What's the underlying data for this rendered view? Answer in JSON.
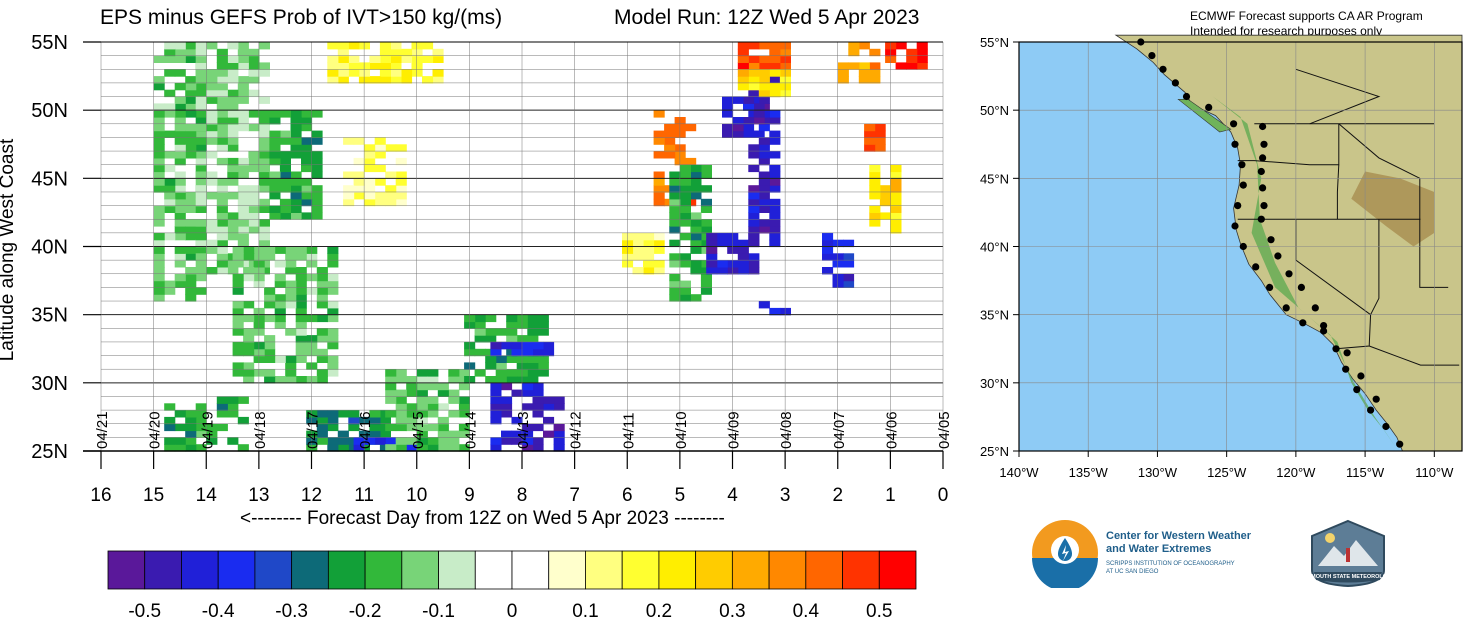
{
  "header": {
    "left_title": "EPS minus GEFS Prob of IVT>150 kg/(ms)",
    "right_title": "Model Run: 12Z Wed 5 Apr 2023",
    "note_line1": "ECMWF Forecast supports CA AR Program",
    "note_line2": "Intended for research purposes only"
  },
  "chart_data": [
    {
      "type": "heatmap",
      "title": "EPS minus GEFS Prob of IVT>150 kg/(ms)",
      "subtitle": "Model Run: 12Z Wed 5 Apr 2023",
      "xlabel": "<-------- Forecast Day from 12Z on Wed 5 Apr 2023 --------",
      "ylabel": "Latitude along West Coast",
      "xlim": [
        16,
        0
      ],
      "ylim": [
        25,
        55
      ],
      "x_ticks": [
        16,
        15,
        14,
        13,
        12,
        11,
        10,
        9,
        8,
        7,
        6,
        5,
        4,
        3,
        2,
        1,
        0
      ],
      "y_ticks": [
        "25N",
        "30N",
        "35N",
        "40N",
        "45N",
        "50N",
        "55N"
      ],
      "date_labels": [
        {
          "day": 16,
          "label": "04/21"
        },
        {
          "day": 15,
          "label": "04/20"
        },
        {
          "day": 14,
          "label": "04/19"
        },
        {
          "day": 13,
          "label": "04/18"
        },
        {
          "day": 12,
          "label": "04/17"
        },
        {
          "day": 11,
          "label": "04/16"
        },
        {
          "day": 10,
          "label": "04/15"
        },
        {
          "day": 9,
          "label": "04/14"
        },
        {
          "day": 8,
          "label": "04/13"
        },
        {
          "day": 7,
          "label": "04/12"
        },
        {
          "day": 6,
          "label": "04/11"
        },
        {
          "day": 5,
          "label": "04/10"
        },
        {
          "day": 4,
          "label": "04/09"
        },
        {
          "day": 3,
          "label": "04/08"
        },
        {
          "day": 2,
          "label": "04/07"
        },
        {
          "day": 1,
          "label": "04/06"
        },
        {
          "day": 0,
          "label": "04/05"
        }
      ],
      "regions": [
        {
          "x0": 15,
          "x1": 14,
          "y0": 36,
          "y1": 55,
          "value": -0.15
        },
        {
          "x0": 14.2,
          "x1": 12.8,
          "y0": 38,
          "y1": 55,
          "value": -0.12
        },
        {
          "x0": 13.5,
          "x1": 11.5,
          "y0": 30,
          "y1": 40,
          "value": -0.15
        },
        {
          "x0": 12.8,
          "x1": 11.8,
          "y0": 42,
          "y1": 50,
          "value": -0.2
        },
        {
          "x0": 11.7,
          "x1": 9.5,
          "y0": 52,
          "y1": 55,
          "value": 0.18
        },
        {
          "x0": 11.3,
          "x1": 10.2,
          "y0": 43,
          "y1": 48,
          "value": 0.12
        },
        {
          "x0": 14.8,
          "x1": 13.2,
          "y0": 25,
          "y1": 29,
          "value": -0.2
        },
        {
          "x0": 12,
          "x1": 10.5,
          "y0": 25,
          "y1": 28,
          "value": -0.25
        },
        {
          "x0": 11.2,
          "x1": 9.8,
          "y0": 25,
          "y1": 26,
          "value": -0.4
        },
        {
          "x0": 10.5,
          "x1": 9,
          "y0": 25,
          "y1": 31,
          "value": -0.15
        },
        {
          "x0": 9,
          "x1": 7.5,
          "y0": 30,
          "y1": 35,
          "value": -0.2
        },
        {
          "x0": 8.6,
          "x1": 7.4,
          "y0": 32,
          "y1": 33,
          "value": -0.4
        },
        {
          "x0": 8.6,
          "x1": 7.2,
          "y0": 25,
          "y1": 30,
          "value": -0.45
        },
        {
          "x0": 6,
          "x1": 5.3,
          "y0": 38,
          "y1": 41,
          "value": 0.15
        },
        {
          "x0": 5.4,
          "x1": 4.7,
          "y0": 43,
          "y1": 50,
          "value": 0.4
        },
        {
          "x0": 5.1,
          "x1": 4.4,
          "y0": 36,
          "y1": 46,
          "value": -0.2
        },
        {
          "x0": 4.5,
          "x1": 3.5,
          "y0": 38,
          "y1": 41,
          "value": -0.45
        },
        {
          "x0": 3.6,
          "x1": 3.1,
          "y0": 40,
          "y1": 53,
          "value": -0.45
        },
        {
          "x0": 4.1,
          "x1": 3.4,
          "y0": 48,
          "y1": 51,
          "value": -0.45
        },
        {
          "x0": 3.8,
          "x1": 2.9,
          "y0": 53,
          "y1": 55,
          "value": 0.45
        },
        {
          "x0": 3.9,
          "x1": 2.9,
          "y0": 51,
          "y1": 53,
          "value": 0.25
        },
        {
          "x0": 2.2,
          "x1": 1.7,
          "y0": 37,
          "y1": 41,
          "value": -0.4
        },
        {
          "x0": 1.4,
          "x1": 0.8,
          "y0": 41,
          "y1": 46,
          "value": 0.25
        },
        {
          "x0": 1.5,
          "x1": 1.1,
          "y0": 47,
          "y1": 49,
          "value": 0.45
        },
        {
          "x0": 1.0,
          "x1": 0.3,
          "y0": 53,
          "y1": 55,
          "value": 0.5
        },
        {
          "x0": 2.0,
          "x1": 1.2,
          "y0": 52,
          "y1": 55,
          "value": 0.35
        },
        {
          "x0": 3.4,
          "x1": 2.9,
          "y0": 35,
          "y1": 36,
          "value": -0.4
        }
      ]
    },
    {
      "type": "colorbar",
      "tick_labels": [
        "-0.5",
        "-0.4",
        "-0.3",
        "-0.2",
        "-0.1",
        "0",
        "0.1",
        "0.2",
        "0.3",
        "0.4",
        "0.5"
      ],
      "bins": [
        {
          "value": -0.525,
          "color": "#5a189a"
        },
        {
          "value": -0.475,
          "color": "#3a1bb0"
        },
        {
          "value": -0.425,
          "color": "#2020d8"
        },
        {
          "value": -0.375,
          "color": "#1a2cf0"
        },
        {
          "value": -0.325,
          "color": "#1f48c8"
        },
        {
          "value": -0.275,
          "color": "#0d6a78"
        },
        {
          "value": -0.225,
          "color": "#12a038"
        },
        {
          "value": -0.175,
          "color": "#32b83a"
        },
        {
          "value": -0.125,
          "color": "#78d478"
        },
        {
          "value": -0.075,
          "color": "#c8ecc8"
        },
        {
          "value": -0.025,
          "color": "#ffffff"
        },
        {
          "value": 0.025,
          "color": "#ffffff"
        },
        {
          "value": 0.075,
          "color": "#ffffcc"
        },
        {
          "value": 0.125,
          "color": "#ffff80"
        },
        {
          "value": 0.175,
          "color": "#ffff30"
        },
        {
          "value": 0.225,
          "color": "#ffee00"
        },
        {
          "value": 0.275,
          "color": "#ffcc00"
        },
        {
          "value": 0.325,
          "color": "#ffaa00"
        },
        {
          "value": 0.375,
          "color": "#ff8800"
        },
        {
          "value": 0.425,
          "color": "#ff6600"
        },
        {
          "value": 0.475,
          "color": "#ff3300"
        },
        {
          "value": 0.525,
          "color": "#ff0000"
        }
      ]
    },
    {
      "type": "map",
      "lon_ticks": [
        "140°W",
        "135°W",
        "130°W",
        "125°W",
        "120°W",
        "115°W",
        "110°W"
      ],
      "lat_ticks": [
        "25°N",
        "30°N",
        "35°N",
        "40°N",
        "45°N",
        "50°N",
        "55°N"
      ],
      "lon_range": [
        -140,
        -108
      ],
      "lat_range": [
        25,
        55
      ],
      "ocean_color": "#8ecbf5",
      "coast_points": [
        [
          -131.2,
          55
        ],
        [
          -130.4,
          54
        ],
        [
          -129.6,
          53
        ],
        [
          -128.7,
          52
        ],
        [
          -127.9,
          51
        ],
        [
          -126.3,
          50.2
        ],
        [
          -124.5,
          49
        ],
        [
          -124.4,
          47.5
        ],
        [
          -123.9,
          46
        ],
        [
          -123.8,
          44.5
        ],
        [
          -124.2,
          43
        ],
        [
          -124.4,
          41.5
        ],
        [
          -123.8,
          40
        ],
        [
          -122.9,
          38.5
        ],
        [
          -121.9,
          37
        ],
        [
          -120.7,
          35.5
        ],
        [
          -119.5,
          34.4
        ],
        [
          -118,
          33.8
        ],
        [
          -117.1,
          32.5
        ],
        [
          -116.4,
          31
        ],
        [
          -115.6,
          29.5
        ],
        [
          -114.6,
          28
        ],
        [
          -113.5,
          26.8
        ],
        [
          -112.5,
          25.5
        ],
        [
          -122.4,
          48.8
        ],
        [
          -122.3,
          47.5
        ],
        [
          -122.4,
          46.5
        ],
        [
          -122.5,
          45.5
        ],
        [
          -122.4,
          44.3
        ],
        [
          -122.3,
          43
        ],
        [
          -122.5,
          42
        ],
        [
          -121.8,
          40.5
        ],
        [
          -121.3,
          39.3
        ],
        [
          -120.5,
          38
        ],
        [
          -119.6,
          37
        ],
        [
          -118.6,
          35.5
        ],
        [
          -118,
          34.2
        ],
        [
          -116.3,
          32.2
        ],
        [
          -115.3,
          30.5
        ],
        [
          -114.2,
          28.8
        ]
      ]
    }
  ],
  "logos": {
    "cw3e_line1": "Center for Western Weather",
    "cw3e_line2": "and Water Extremes",
    "cw3e_sub1": "SCRIPPS INSTITUTION OF OCEANOGRAPHY",
    "cw3e_sub2": "AT UC SAN DIEGO",
    "psu_text": "PLYMOUTH STATE METEOROLOGY"
  }
}
